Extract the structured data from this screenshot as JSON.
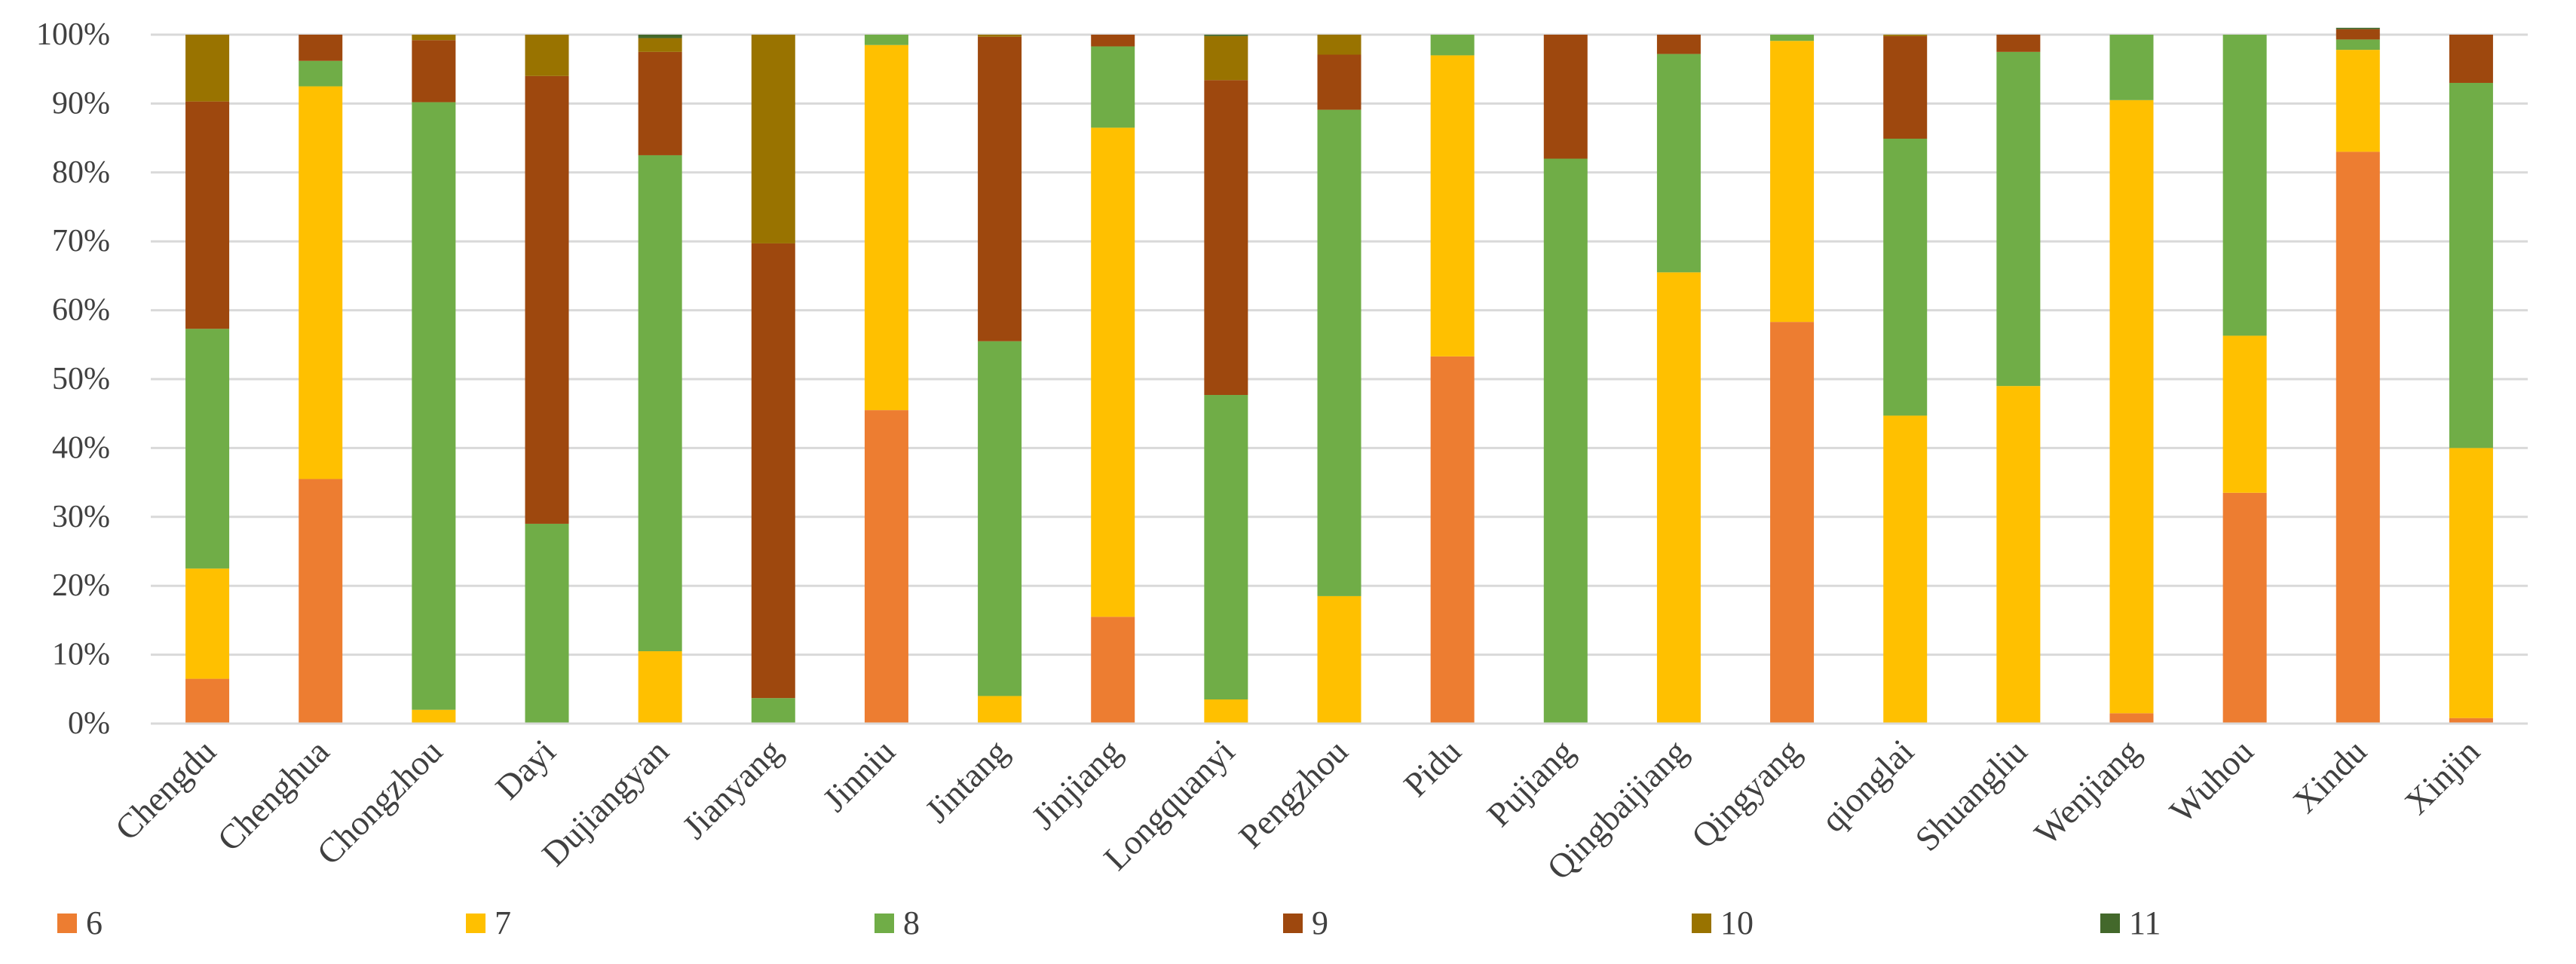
{
  "chart_data": {
    "type": "bar",
    "stacked": true,
    "percent": true,
    "title": "",
    "xlabel": "",
    "ylabel": "",
    "ylim": [
      0,
      100
    ],
    "y_ticks": [
      "0%",
      "10%",
      "20%",
      "30%",
      "40%",
      "50%",
      "60%",
      "70%",
      "80%",
      "90%",
      "100%"
    ],
    "grid": true,
    "legend_position": "bottom",
    "categories": [
      "Chengdu",
      "Chenghua",
      "Chongzhou",
      "Dayi",
      "Dujiangyan",
      "Jianyang",
      "Jinniu",
      "Jintang",
      "Jinjiang",
      "Longquanyi",
      "Pengzhou",
      "Pidu",
      "Pujiang",
      "Qingbaijiang",
      "Qingyang",
      "qionglai",
      "Shuangliu",
      "Wenjiang",
      "Wuhou",
      "Xindu",
      "Xinjin"
    ],
    "series": [
      {
        "name": "6",
        "color": "#ED7D31",
        "values": [
          6.5,
          35.5,
          0,
          0,
          0,
          0,
          45.5,
          0,
          15.5,
          0,
          0,
          53.3,
          0,
          0,
          58.3,
          0,
          0,
          1.5,
          33.5,
          83.0,
          0.8
        ]
      },
      {
        "name": "7",
        "color": "#FFC000",
        "values": [
          16.0,
          57.0,
          2.0,
          0,
          10.5,
          0,
          53.0,
          4.0,
          71.0,
          3.5,
          18.5,
          43.7,
          0,
          65.5,
          40.8,
          44.7,
          49.0,
          89.0,
          22.8,
          14.8,
          39.2
        ]
      },
      {
        "name": "8",
        "color": "#70AD47",
        "values": [
          34.8,
          3.7,
          88.2,
          29.0,
          72.0,
          3.7,
          1.5,
          51.5,
          11.8,
          44.2,
          70.6,
          3.0,
          82.0,
          31.7,
          0.9,
          40.2,
          48.5,
          9.5,
          43.7,
          1.5,
          53.0
        ]
      },
      {
        "name": "9",
        "color": "#9E480E",
        "values": [
          33.0,
          3.8,
          9.0,
          65.0,
          15.0,
          66.0,
          0,
          44.2,
          1.7,
          45.7,
          8.0,
          0,
          18.0,
          2.8,
          0,
          14.9,
          2.5,
          0,
          0,
          1.5,
          7.0
        ]
      },
      {
        "name": "10",
        "color": "#997300",
        "values": [
          9.7,
          0,
          0.8,
          6.0,
          2.0,
          30.3,
          0,
          0.3,
          0,
          6.4,
          2.9,
          0,
          0,
          0,
          0,
          0.2,
          0,
          0,
          0,
          0,
          0
        ]
      },
      {
        "name": "11",
        "color": "#43682B",
        "values": [
          0,
          0,
          0,
          0,
          0.5,
          0,
          0,
          0,
          0,
          0.2,
          0,
          0,
          0,
          0,
          0,
          0,
          0,
          0,
          0,
          0.2,
          0
        ]
      }
    ]
  }
}
